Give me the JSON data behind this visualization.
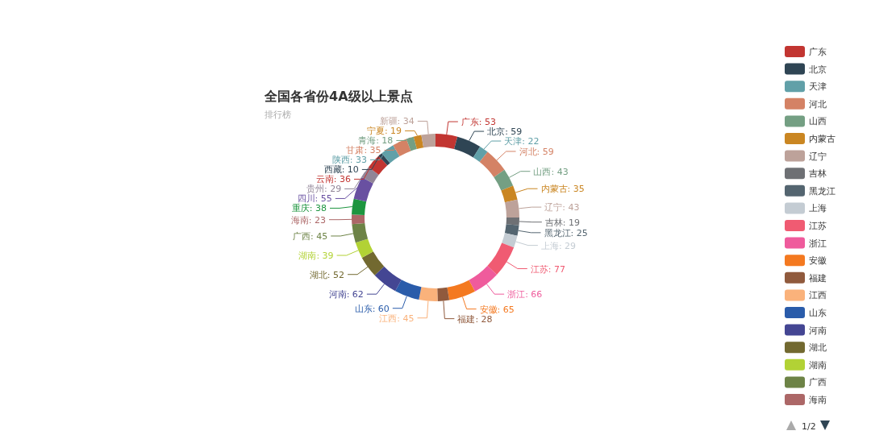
{
  "chart_data": {
    "type": "donut",
    "title": "全国各省份4A级以上景点",
    "subtitle": "排行榜",
    "categories": [
      "广东",
      "北京",
      "天津",
      "河北",
      "山西",
      "内蒙古",
      "辽宁",
      "吉林",
      "黑龙江",
      "上海",
      "江苏",
      "浙江",
      "安徽",
      "福建",
      "江西",
      "山东",
      "河南",
      "湖北",
      "湖南",
      "广西",
      "海南",
      "重庆",
      "四川",
      "贵州",
      "云南",
      "西藏",
      "陕西",
      "甘肃",
      "青海",
      "宁夏",
      "新疆"
    ],
    "values": [
      53,
      59,
      22,
      59,
      43,
      35,
      43,
      19,
      25,
      29,
      77,
      66,
      65,
      28,
      45,
      60,
      62,
      52,
      39,
      45,
      23,
      38,
      55,
      29,
      36,
      10,
      33,
      35,
      18,
      19,
      34
    ],
    "colors": [
      "#c23531",
      "#2f4554",
      "#61a0a8",
      "#d48265",
      "#749f83",
      "#ca8622",
      "#bda29a",
      "#6e7074",
      "#546570",
      "#c4ccd3",
      "#f05b72",
      "#ef5b9c",
      "#f47920",
      "#905a3d",
      "#fab27b",
      "#2a5caa",
      "#444693",
      "#726930",
      "#b2d235",
      "#6d8346",
      "#ac6767",
      "#1d953f",
      "#6950a1",
      "#918597",
      "#c23531",
      "#2f4554",
      "#61a0a8",
      "#d48265",
      "#749f83",
      "#ca8622",
      "#bda29a"
    ],
    "value_labels": [
      ": 53",
      ": 59",
      ": 22",
      ": 59",
      ": 43",
      ": 35",
      ": 43",
      ": 19",
      ": 25",
      ": 29",
      ": 77",
      ": 66",
      ": 65",
      ": 28",
      ": 45",
      ": 60",
      ": 62",
      ": 52",
      ": 39",
      ": 45",
      ": 23",
      ": 38",
      ": 55",
      ": 29",
      ": 36",
      ": 10",
      ": 33",
      ": 35",
      ": 18",
      ": 19",
      ": 34"
    ],
    "legend": "right",
    "annotations": [
      "1/2"
    ]
  }
}
